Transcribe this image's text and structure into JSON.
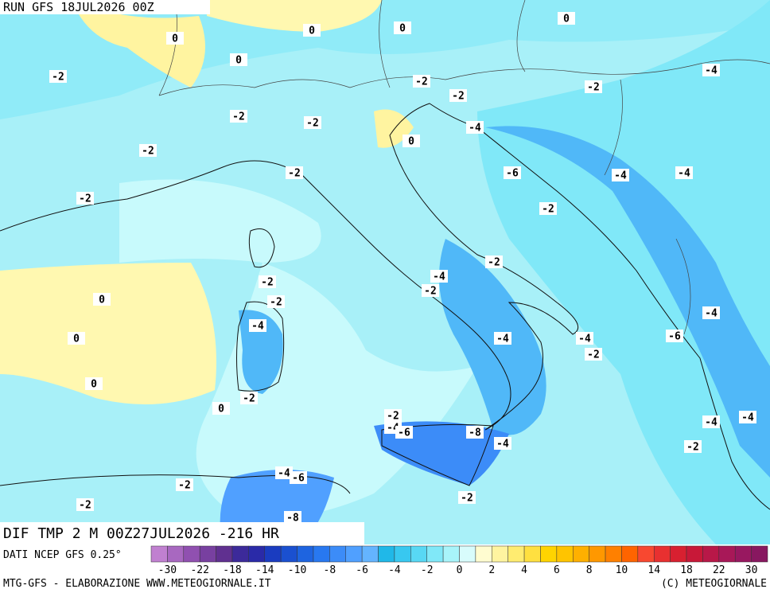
{
  "header": {
    "run": "RUN GFS 18JUL2026 00Z"
  },
  "map": {
    "title": "DIF TMP 2 M 00Z27JUL2026 -216 HR",
    "contour_labels": [
      "0",
      "0",
      "0",
      "0",
      "0",
      "0",
      "0",
      "0",
      "0",
      "0",
      "-2",
      "-2",
      "-2",
      "-2",
      "-2",
      "-2",
      "-2",
      "-2",
      "-2",
      "-2",
      "-2",
      "-2",
      "-2",
      "-2",
      "-2",
      "-2",
      "-2",
      "-2",
      "-2",
      "-2",
      "-2",
      "-4",
      "-4",
      "-4",
      "-4",
      "-4",
      "-4",
      "-4",
      "-4",
      "-4",
      "-4",
      "-4",
      "-4",
      "-4",
      "-4",
      "-6",
      "-6",
      "-6",
      "-6",
      "-8",
      "-8"
    ]
  },
  "legend": {
    "labels": [
      "-30",
      "-22",
      "-18",
      "-14",
      "-10",
      "-8",
      "-6",
      "-4",
      "-2",
      "0",
      "2",
      "4",
      "6",
      "8",
      "10",
      "14",
      "18",
      "22",
      "30"
    ]
  },
  "footer": {
    "source": "DATI NCEP GFS 0.25°",
    "credit": "MTG-GFS - ELABORAZIONE WWW.METEOGIORNALE.IT",
    "copyright": "(C) METEOGIORNALE"
  }
}
